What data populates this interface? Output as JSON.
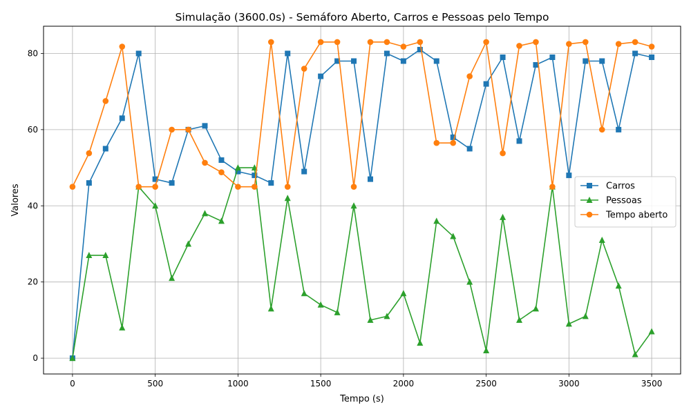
{
  "chart_data": {
    "type": "line",
    "title": "Simulação (3600.0s) - Semáforo Aberto, Carros e Pessoas pelo Tempo",
    "xlabel": "Tempo (s)",
    "ylabel": "Valores",
    "xlim": [
      -175,
      3675
    ],
    "ylim": [
      -4.15,
      87.15
    ],
    "xticks": [
      0,
      500,
      1000,
      1500,
      2000,
      2500,
      3000,
      3500
    ],
    "yticks": [
      0,
      20,
      40,
      60,
      80
    ],
    "grid": true,
    "legend_position": "center-right",
    "x": [
      0,
      100,
      200,
      300,
      400,
      500,
      600,
      700,
      800,
      900,
      1000,
      1100,
      1200,
      1300,
      1400,
      1500,
      1600,
      1700,
      1800,
      1900,
      2000,
      2100,
      2200,
      2300,
      2400,
      2500,
      2600,
      2700,
      2800,
      2900,
      3000,
      3100,
      3200,
      3300,
      3400,
      3500
    ],
    "series": [
      {
        "name": "Carros",
        "color": "#1f77b4",
        "marker": "square",
        "values": [
          0,
          46,
          55,
          63,
          80,
          47,
          46,
          60,
          61,
          52,
          49,
          48,
          46,
          80,
          49,
          74,
          78,
          78,
          47,
          80,
          78,
          81,
          78,
          58,
          55,
          72,
          79,
          57,
          77,
          79,
          48,
          78,
          78,
          60,
          80,
          79
        ]
      },
      {
        "name": "Pessoas",
        "color": "#2ca02c",
        "marker": "triangle",
        "values": [
          0,
          27,
          27,
          8,
          45,
          40,
          21,
          30,
          38,
          36,
          50,
          50,
          13,
          42,
          17,
          14,
          12,
          40,
          10,
          11,
          17,
          4,
          36,
          32,
          20,
          2,
          37,
          10,
          13,
          45,
          9,
          11,
          31,
          19,
          1,
          7
        ]
      },
      {
        "name": "Tempo aberto",
        "color": "#ff7f0e",
        "marker": "circle",
        "values": [
          45,
          53.8,
          67.5,
          81.8,
          45,
          45,
          60,
          60,
          51.3,
          48.8,
          45,
          45,
          83,
          45,
          76,
          83,
          83,
          45,
          83,
          83,
          81.8,
          83,
          56.5,
          56.5,
          74,
          83,
          53.8,
          82,
          83,
          45,
          82.5,
          83,
          60,
          82.5,
          83,
          81.8
        ]
      }
    ]
  }
}
